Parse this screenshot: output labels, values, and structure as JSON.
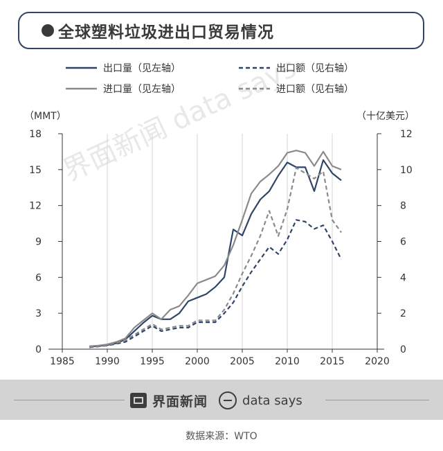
{
  "title": "●全球塑料垃圾进出口贸易情况",
  "title_text": "全球塑料垃圾进出口贸易情况",
  "left_unit": "（MMT）",
  "right_unit": "（十亿美元）",
  "source": "数据来源：WTO",
  "brand": {
    "name": "界面新闻",
    "data_says": "data says"
  },
  "watermark": "界面新闻 data says",
  "colors": {
    "navy": "#2f4468",
    "gray": "#8a8a8a",
    "footer": "#d3d3d3"
  },
  "chart_data": {
    "type": "line",
    "legend": [
      "出口量（见左轴）",
      "出口额（见右轴）",
      "进口量（见左轴）",
      "进口额（见右轴）"
    ],
    "x_ticks": [
      "1985",
      "1990",
      "1995",
      "2000",
      "2005",
      "2010",
      "2015",
      "2020"
    ],
    "x_range": [
      1985,
      2020
    ],
    "y_left": {
      "range": [
        0,
        18
      ],
      "ticks": [
        "0",
        "3",
        "6",
        "9",
        "12",
        "15",
        "18"
      ]
    },
    "y_right": {
      "range": [
        0,
        12
      ],
      "ticks": [
        "0",
        "2",
        "4",
        "6",
        "8",
        "10",
        "12"
      ]
    },
    "series": [
      {
        "name": "出口量（见左轴）",
        "axis": "left",
        "style": "solid",
        "color": "#2f4468",
        "x": [
          1988,
          1989,
          1990,
          1991,
          1992,
          1993,
          1994,
          1995,
          1996,
          1997,
          1998,
          1999,
          2000,
          2001,
          2002,
          2003,
          2004,
          2005,
          2006,
          2007,
          2008,
          2009,
          2010,
          2011,
          2012,
          2013,
          2014,
          2015,
          2016
        ],
        "y": [
          0.2,
          0.25,
          0.35,
          0.5,
          0.8,
          1.5,
          2.2,
          2.8,
          2.5,
          2.5,
          3.0,
          4.0,
          4.3,
          4.6,
          5.2,
          6.0,
          10.0,
          9.5,
          11.3,
          12.5,
          13.2,
          14.5,
          15.6,
          15.2,
          15.2,
          13.2,
          15.8,
          14.7,
          14.1
        ]
      },
      {
        "name": "进口量（见左轴）",
        "axis": "left",
        "style": "solid",
        "color": "#8a8a8a",
        "x": [
          1988,
          1989,
          1990,
          1991,
          1992,
          1993,
          1994,
          1995,
          1996,
          1997,
          1998,
          1999,
          2000,
          2001,
          2002,
          2003,
          2004,
          2005,
          2006,
          2007,
          2008,
          2009,
          2010,
          2011,
          2012,
          2013,
          2014,
          2015,
          2016
        ],
        "y": [
          0.25,
          0.3,
          0.4,
          0.6,
          0.9,
          1.8,
          2.4,
          3.0,
          2.5,
          3.3,
          3.6,
          4.5,
          5.5,
          5.8,
          6.1,
          7.0,
          8.7,
          10.8,
          13.0,
          14.0,
          14.6,
          15.3,
          16.4,
          16.6,
          16.4,
          15.3,
          16.5,
          15.3,
          15.0
        ]
      },
      {
        "name": "出口额（见右轴）",
        "axis": "right",
        "style": "dashed",
        "color": "#2f4468",
        "x": [
          1988,
          1989,
          1990,
          1991,
          1992,
          1993,
          1994,
          1995,
          1996,
          1997,
          1998,
          1999,
          2000,
          2001,
          2002,
          2003,
          2004,
          2005,
          2006,
          2007,
          2008,
          2009,
          2010,
          2011,
          2012,
          2013,
          2014,
          2015,
          2016
        ],
        "y": [
          0.1,
          0.15,
          0.2,
          0.3,
          0.4,
          0.7,
          1.0,
          1.3,
          1.0,
          1.1,
          1.2,
          1.2,
          1.5,
          1.5,
          1.5,
          2.0,
          2.6,
          3.5,
          4.3,
          5.0,
          5.7,
          5.3,
          6.1,
          7.2,
          7.1,
          6.7,
          6.9,
          6.0,
          5.0
        ]
      },
      {
        "name": "进口额（见右轴）",
        "axis": "right",
        "style": "dashed",
        "color": "#8a8a8a",
        "x": [
          1988,
          1989,
          1990,
          1991,
          1992,
          1993,
          1994,
          1995,
          1996,
          1997,
          1998,
          1999,
          2000,
          2001,
          2002,
          2003,
          2004,
          2005,
          2006,
          2007,
          2008,
          2009,
          2010,
          2011,
          2012,
          2013,
          2014,
          2015,
          2016
        ],
        "y": [
          0.12,
          0.17,
          0.22,
          0.35,
          0.5,
          0.8,
          1.1,
          1.4,
          1.1,
          1.2,
          1.3,
          1.3,
          1.6,
          1.6,
          1.6,
          2.2,
          3.1,
          4.2,
          5.2,
          6.3,
          7.7,
          6.3,
          7.8,
          10.1,
          9.8,
          9.5,
          9.9,
          7.2,
          6.5
        ]
      }
    ]
  }
}
